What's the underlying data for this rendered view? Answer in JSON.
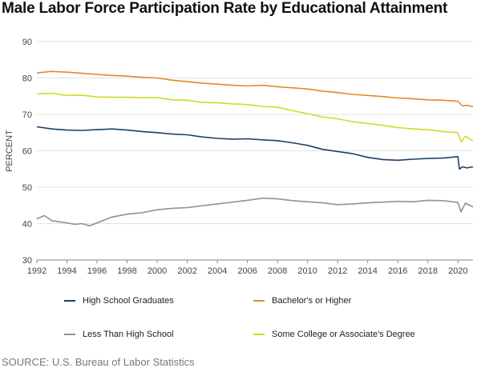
{
  "title": "Male Labor Force Participation Rate by Educational Attainment",
  "source": "SOURCE: U.S. Bureau of Labor Statistics",
  "chart_data": {
    "type": "line",
    "title": "Male Labor Force Participation Rate by Educational Attainment",
    "xlabel": "",
    "ylabel": "PERCENT",
    "xlim": [
      1992,
      2021
    ],
    "ylim": [
      30,
      90
    ],
    "yticks": [
      "30",
      "40",
      "50",
      "60",
      "70",
      "80",
      "90"
    ],
    "xticks": [
      "1992",
      "1994",
      "1996",
      "1998",
      "2000",
      "2002",
      "2004",
      "2006",
      "2008",
      "2010",
      "2012",
      "2014",
      "2016",
      "2018",
      "2020"
    ],
    "grid": true,
    "legend_position": "bottom",
    "series": [
      {
        "name": "High School Graduates",
        "color": "#1f3f66",
        "x": [
          1992,
          1993,
          1994,
          1995,
          1996,
          1997,
          1998,
          1999,
          2000,
          2001,
          2002,
          2003,
          2004,
          2005,
          2006,
          2007,
          2008,
          2009,
          2010,
          2011,
          2012,
          2013,
          2014,
          2015,
          2016,
          2017,
          2018,
          2019,
          2020,
          2020.1,
          2020.3,
          2020.6,
          2021
        ],
        "values": [
          66.6,
          66.0,
          65.7,
          65.6,
          65.8,
          66.0,
          65.7,
          65.3,
          65.0,
          64.6,
          64.4,
          63.8,
          63.4,
          63.2,
          63.3,
          63.0,
          62.8,
          62.2,
          61.5,
          60.4,
          59.8,
          59.2,
          58.2,
          57.6,
          57.4,
          57.7,
          57.9,
          58.0,
          58.4,
          55.0,
          55.6,
          55.3,
          55.6
        ]
      },
      {
        "name": "Bachelor's or Higher",
        "color": "#e08a2b",
        "x": [
          1992,
          1993,
          1994,
          1995,
          1996,
          1997,
          1998,
          1999,
          2000,
          2001,
          2002,
          2003,
          2004,
          2005,
          2006,
          2007,
          2008,
          2009,
          2010,
          2011,
          2012,
          2013,
          2014,
          2015,
          2016,
          2017,
          2018,
          2019,
          2020,
          2020.3,
          2020.6,
          2021
        ],
        "values": [
          81.4,
          81.8,
          81.6,
          81.3,
          81.0,
          80.7,
          80.5,
          80.2,
          80.0,
          79.4,
          79.0,
          78.6,
          78.3,
          78.0,
          77.8,
          78.0,
          77.6,
          77.3,
          77.0,
          76.4,
          76.0,
          75.5,
          75.2,
          74.9,
          74.5,
          74.3,
          74.0,
          73.9,
          73.6,
          72.3,
          72.5,
          72.1
        ]
      },
      {
        "name": "Less Than High School",
        "color": "#8a9496",
        "x": [
          1992,
          1992.5,
          1993,
          1994,
          1994.5,
          1995,
          1995.5,
          1996,
          1997,
          1998,
          1999,
          2000,
          2001,
          2002,
          2003,
          2004,
          2005,
          2006,
          2007,
          2008,
          2009,
          2010,
          2011,
          2012,
          2013,
          2014,
          2015,
          2016,
          2017,
          2018,
          2019,
          2020,
          2020.2,
          2020.5,
          2021
        ],
        "values": [
          41.3,
          42.2,
          40.8,
          40.2,
          39.8,
          40.0,
          39.4,
          40.2,
          41.8,
          42.6,
          43.0,
          43.8,
          44.2,
          44.4,
          44.9,
          45.4,
          45.9,
          46.4,
          47.0,
          46.8,
          46.3,
          46.0,
          45.7,
          45.2,
          45.4,
          45.7,
          45.9,
          46.1,
          46.0,
          46.4,
          46.3,
          45.8,
          43.2,
          45.6,
          44.6
        ]
      },
      {
        "name": "Some College or Associate's Degree",
        "color": "#d4d92a",
        "x": [
          1992,
          1993,
          1994,
          1995,
          1996,
          1997,
          1998,
          1999,
          2000,
          2001,
          2002,
          2003,
          2004,
          2005,
          2006,
          2007,
          2008,
          2009,
          2010,
          2011,
          2012,
          2013,
          2014,
          2015,
          2016,
          2017,
          2018,
          2019,
          2020,
          2020.2,
          2020.5,
          2021
        ],
        "values": [
          75.6,
          75.8,
          75.2,
          75.3,
          74.8,
          74.7,
          74.7,
          74.6,
          74.6,
          74.0,
          73.9,
          73.3,
          73.2,
          72.9,
          72.7,
          72.2,
          72.0,
          71.0,
          70.2,
          69.3,
          68.8,
          68.0,
          67.5,
          67.0,
          66.4,
          66.0,
          65.8,
          65.3,
          65.0,
          62.4,
          64.0,
          62.7
        ]
      }
    ]
  }
}
